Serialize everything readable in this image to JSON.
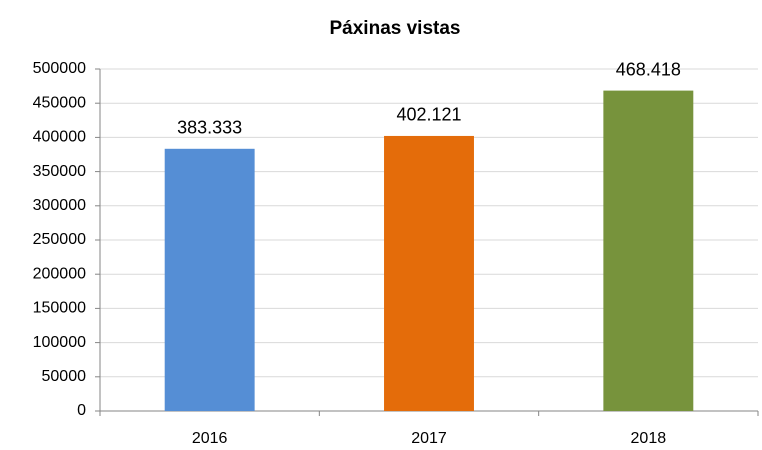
{
  "chart_data": {
    "type": "bar",
    "title": "Páxinas vistas",
    "categories": [
      "2016",
      "2017",
      "2018"
    ],
    "values": [
      383333,
      402121,
      468418
    ],
    "value_labels": [
      "383.333",
      "402.121",
      "468.418"
    ],
    "colors": [
      "#558ed5",
      "#e46c0a",
      "#77933c"
    ],
    "ylim": [
      0,
      500000
    ],
    "yticks": [
      0,
      50000,
      100000,
      150000,
      200000,
      250000,
      300000,
      350000,
      400000,
      450000,
      500000
    ],
    "grid": true
  }
}
